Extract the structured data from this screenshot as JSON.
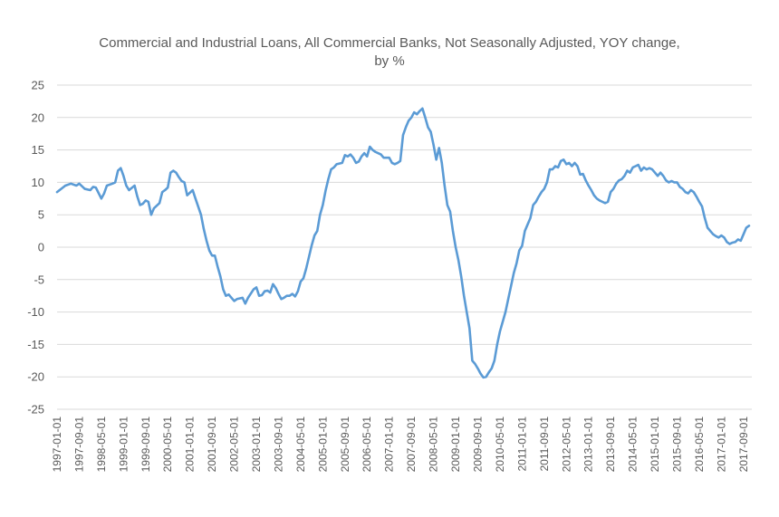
{
  "chart_data": {
    "type": "line",
    "title_lines": [
      "Commercial and Industrial Loans, All Commercial Banks, Not Seasonally Adjusted,    YOY change,",
      "by %"
    ],
    "xlabel": "",
    "ylabel": "",
    "ylim": [
      -25,
      25
    ],
    "yticks": [
      25,
      20,
      15,
      10,
      5,
      0,
      -5,
      -10,
      -15,
      -20,
      -25
    ],
    "grid": true,
    "legend": "none",
    "x_start": "1997-01-01",
    "x_end": "2017-12-01",
    "x_tick_labels": [
      "1997-01-01",
      "1997-09-01",
      "1998-05-01",
      "1999-01-01",
      "1999-09-01",
      "2000-05-01",
      "2001-01-01",
      "2001-09-01",
      "2002-05-01",
      "2003-01-01",
      "2003-09-01",
      "2004-05-01",
      "2005-01-01",
      "2005-09-01",
      "2006-05-01",
      "2007-01-01",
      "2007-09-01",
      "2008-05-01",
      "2009-01-01",
      "2009-09-01",
      "2010-05-01",
      "2011-01-01",
      "2011-09-01",
      "2012-05-01",
      "2013-01-01",
      "2013-09-01",
      "2014-05-01",
      "2015-01-01",
      "2015-09-01",
      "2016-05-01",
      "2017-01-01",
      "2017-09-01"
    ],
    "colors": {
      "line": "#5b9bd5",
      "grid": "#d9d9d9",
      "text": "#595959"
    },
    "series": [
      {
        "points": [
          [
            "1997-01-01",
            8.5
          ],
          [
            "1997-04-01",
            9.5
          ],
          [
            "1997-06-01",
            9.8
          ],
          [
            "1997-08-01",
            9.5
          ],
          [
            "1997-09-01",
            9.8
          ],
          [
            "1997-11-01",
            9.0
          ],
          [
            "1998-01-01",
            8.8
          ],
          [
            "1998-02-01",
            9.3
          ],
          [
            "1998-03-01",
            9.2
          ],
          [
            "1998-05-01",
            7.5
          ],
          [
            "1998-06-01",
            8.3
          ],
          [
            "1998-07-01",
            9.5
          ],
          [
            "1998-09-01",
            9.8
          ],
          [
            "1998-10-01",
            10.0
          ],
          [
            "1998-11-01",
            11.8
          ],
          [
            "1998-12-01",
            12.2
          ],
          [
            "1999-01-01",
            11.0
          ],
          [
            "1999-02-01",
            9.5
          ],
          [
            "1999-03-01",
            8.8
          ],
          [
            "1999-05-01",
            9.5
          ],
          [
            "1999-06-01",
            7.8
          ],
          [
            "1999-07-01",
            6.5
          ],
          [
            "1999-08-01",
            6.7
          ],
          [
            "1999-09-01",
            7.2
          ],
          [
            "1999-10-01",
            7.0
          ],
          [
            "1999-11-01",
            5.0
          ],
          [
            "1999-12-01",
            6.0
          ],
          [
            "2000-02-01",
            6.8
          ],
          [
            "2000-03-01",
            8.5
          ],
          [
            "2000-04-01",
            8.8
          ],
          [
            "2000-05-01",
            9.2
          ],
          [
            "2000-06-01",
            11.5
          ],
          [
            "2000-07-01",
            11.8
          ],
          [
            "2000-08-01",
            11.5
          ],
          [
            "2000-09-01",
            10.8
          ],
          [
            "2000-10-01",
            10.2
          ],
          [
            "2000-11-01",
            10.0
          ],
          [
            "2000-12-01",
            8.0
          ],
          [
            "2001-02-01",
            8.8
          ],
          [
            "2001-03-01",
            7.5
          ],
          [
            "2001-05-01",
            5.0
          ],
          [
            "2001-06-01",
            2.8
          ],
          [
            "2001-07-01",
            1.0
          ],
          [
            "2001-08-01",
            -0.5
          ],
          [
            "2001-09-01",
            -1.3
          ],
          [
            "2001-10-01",
            -1.3
          ],
          [
            "2001-11-01",
            -3.0
          ],
          [
            "2001-12-01",
            -4.5
          ],
          [
            "2002-01-01",
            -6.5
          ],
          [
            "2002-02-01",
            -7.5
          ],
          [
            "2002-03-01",
            -7.3
          ],
          [
            "2002-05-01",
            -8.3
          ],
          [
            "2002-06-01",
            -8.0
          ],
          [
            "2002-08-01",
            -7.8
          ],
          [
            "2002-09-01",
            -8.7
          ],
          [
            "2002-10-01",
            -7.8
          ],
          [
            "2002-12-01",
            -6.5
          ],
          [
            "2003-01-01",
            -6.2
          ],
          [
            "2003-02-01",
            -7.5
          ],
          [
            "2003-03-01",
            -7.4
          ],
          [
            "2003-04-01",
            -6.8
          ],
          [
            "2003-05-01",
            -6.7
          ],
          [
            "2003-06-01",
            -7.0
          ],
          [
            "2003-07-01",
            -5.7
          ],
          [
            "2003-08-01",
            -6.3
          ],
          [
            "2003-09-01",
            -7.2
          ],
          [
            "2003-10-01",
            -8.0
          ],
          [
            "2003-11-01",
            -7.8
          ],
          [
            "2003-12-01",
            -7.5
          ],
          [
            "2004-01-01",
            -7.5
          ],
          [
            "2004-02-01",
            -7.2
          ],
          [
            "2004-03-01",
            -7.6
          ],
          [
            "2004-04-01",
            -6.8
          ],
          [
            "2004-05-01",
            -5.3
          ],
          [
            "2004-06-01",
            -4.8
          ],
          [
            "2004-07-01",
            -3.3
          ],
          [
            "2004-08-01",
            -1.5
          ],
          [
            "2004-09-01",
            0.3
          ],
          [
            "2004-10-01",
            1.8
          ],
          [
            "2004-11-01",
            2.5
          ],
          [
            "2004-12-01",
            5.0
          ],
          [
            "2005-01-01",
            6.5
          ],
          [
            "2005-02-01",
            8.7
          ],
          [
            "2005-03-01",
            10.5
          ],
          [
            "2005-04-01",
            12.0
          ],
          [
            "2005-05-01",
            12.3
          ],
          [
            "2005-06-01",
            12.8
          ],
          [
            "2005-08-01",
            13.0
          ],
          [
            "2005-09-01",
            14.2
          ],
          [
            "2005-10-01",
            14.0
          ],
          [
            "2005-11-01",
            14.3
          ],
          [
            "2005-12-01",
            13.8
          ],
          [
            "2006-01-01",
            13.0
          ],
          [
            "2006-02-01",
            13.2
          ],
          [
            "2006-03-01",
            14.0
          ],
          [
            "2006-04-01",
            14.5
          ],
          [
            "2006-05-01",
            14.0
          ],
          [
            "2006-06-01",
            15.5
          ],
          [
            "2006-07-01",
            15.0
          ],
          [
            "2006-08-01",
            14.7
          ],
          [
            "2006-09-01",
            14.5
          ],
          [
            "2006-10-01",
            14.3
          ],
          [
            "2006-11-01",
            13.8
          ],
          [
            "2007-01-01",
            13.8
          ],
          [
            "2007-02-01",
            13.0
          ],
          [
            "2007-03-01",
            12.8
          ],
          [
            "2007-04-01",
            13.0
          ],
          [
            "2007-05-01",
            13.3
          ],
          [
            "2007-06-01",
            17.3
          ],
          [
            "2007-07-01",
            18.5
          ],
          [
            "2007-08-01",
            19.5
          ],
          [
            "2007-09-01",
            20.0
          ],
          [
            "2007-10-01",
            20.8
          ],
          [
            "2007-11-01",
            20.5
          ],
          [
            "2007-12-01",
            21.0
          ],
          [
            "2008-01-01",
            21.4
          ],
          [
            "2008-02-01",
            20.0
          ],
          [
            "2008-03-01",
            18.5
          ],
          [
            "2008-04-01",
            17.8
          ],
          [
            "2008-05-01",
            15.8
          ],
          [
            "2008-06-01",
            13.5
          ],
          [
            "2008-07-01",
            15.3
          ],
          [
            "2008-08-01",
            13.0
          ],
          [
            "2008-09-01",
            9.5
          ],
          [
            "2008-10-01",
            6.5
          ],
          [
            "2008-11-01",
            5.5
          ],
          [
            "2008-12-01",
            2.5
          ],
          [
            "2009-01-01",
            0.0
          ],
          [
            "2009-02-01",
            -2.0
          ],
          [
            "2009-03-01",
            -4.5
          ],
          [
            "2009-04-01",
            -7.5
          ],
          [
            "2009-05-01",
            -10.0
          ],
          [
            "2009-06-01",
            -12.5
          ],
          [
            "2009-07-01",
            -17.5
          ],
          [
            "2009-08-01",
            -18.0
          ],
          [
            "2009-09-01",
            -18.7
          ],
          [
            "2009-10-01",
            -19.5
          ],
          [
            "2009-11-01",
            -20.1
          ],
          [
            "2009-12-01",
            -20.0
          ],
          [
            "2010-01-01",
            -19.3
          ],
          [
            "2010-02-01",
            -18.7
          ],
          [
            "2010-03-01",
            -17.5
          ],
          [
            "2010-04-01",
            -15.0
          ],
          [
            "2010-05-01",
            -13.0
          ],
          [
            "2010-06-01",
            -11.5
          ],
          [
            "2010-07-01",
            -10.0
          ],
          [
            "2010-08-01",
            -8.0
          ],
          [
            "2010-09-01",
            -6.0
          ],
          [
            "2010-10-01",
            -4.0
          ],
          [
            "2010-11-01",
            -2.5
          ],
          [
            "2010-12-01",
            -0.5
          ],
          [
            "2011-01-01",
            0.2
          ],
          [
            "2011-02-01",
            2.5
          ],
          [
            "2011-03-01",
            3.5
          ],
          [
            "2011-04-01",
            4.5
          ],
          [
            "2011-05-01",
            6.5
          ],
          [
            "2011-06-01",
            7.0
          ],
          [
            "2011-07-01",
            7.8
          ],
          [
            "2011-08-01",
            8.5
          ],
          [
            "2011-09-01",
            9.0
          ],
          [
            "2011-10-01",
            10.0
          ],
          [
            "2011-11-01",
            12.0
          ],
          [
            "2011-12-01",
            12.0
          ],
          [
            "2012-01-01",
            12.5
          ],
          [
            "2012-02-01",
            12.3
          ],
          [
            "2012-03-01",
            13.3
          ],
          [
            "2012-04-01",
            13.5
          ],
          [
            "2012-05-01",
            12.8
          ],
          [
            "2012-06-01",
            13.0
          ],
          [
            "2012-07-01",
            12.5
          ],
          [
            "2012-08-01",
            13.0
          ],
          [
            "2012-09-01",
            12.5
          ],
          [
            "2012-10-01",
            11.2
          ],
          [
            "2012-11-01",
            11.3
          ],
          [
            "2012-12-01",
            10.3
          ],
          [
            "2013-01-01",
            9.5
          ],
          [
            "2013-02-01",
            8.8
          ],
          [
            "2013-03-01",
            8.0
          ],
          [
            "2013-04-01",
            7.5
          ],
          [
            "2013-05-01",
            7.2
          ],
          [
            "2013-06-01",
            7.0
          ],
          [
            "2013-07-01",
            6.8
          ],
          [
            "2013-08-01",
            7.0
          ],
          [
            "2013-09-01",
            8.5
          ],
          [
            "2013-10-01",
            9.0
          ],
          [
            "2013-11-01",
            9.8
          ],
          [
            "2013-12-01",
            10.3
          ],
          [
            "2014-01-01",
            10.5
          ],
          [
            "2014-02-01",
            11.0
          ],
          [
            "2014-03-01",
            11.8
          ],
          [
            "2014-04-01",
            11.5
          ],
          [
            "2014-05-01",
            12.3
          ],
          [
            "2014-06-01",
            12.5
          ],
          [
            "2014-07-01",
            12.7
          ],
          [
            "2014-08-01",
            11.8
          ],
          [
            "2014-09-01",
            12.3
          ],
          [
            "2014-10-01",
            12.0
          ],
          [
            "2014-11-01",
            12.2
          ],
          [
            "2014-12-01",
            12.0
          ],
          [
            "2015-01-01",
            11.5
          ],
          [
            "2015-02-01",
            11.0
          ],
          [
            "2015-03-01",
            11.5
          ],
          [
            "2015-04-01",
            11.0
          ],
          [
            "2015-05-01",
            10.3
          ],
          [
            "2015-06-01",
            10.0
          ],
          [
            "2015-07-01",
            10.2
          ],
          [
            "2015-08-01",
            10.0
          ],
          [
            "2015-09-01",
            10.0
          ],
          [
            "2015-10-01",
            9.3
          ],
          [
            "2015-11-01",
            9.0
          ],
          [
            "2015-12-01",
            8.5
          ],
          [
            "2016-01-01",
            8.3
          ],
          [
            "2016-02-01",
            8.8
          ],
          [
            "2016-03-01",
            8.5
          ],
          [
            "2016-04-01",
            7.8
          ],
          [
            "2016-05-01",
            7.0
          ],
          [
            "2016-06-01",
            6.3
          ],
          [
            "2016-07-01",
            4.5
          ],
          [
            "2016-08-01",
            3.0
          ],
          [
            "2016-09-01",
            2.5
          ],
          [
            "2016-10-01",
            2.0
          ],
          [
            "2016-11-01",
            1.7
          ],
          [
            "2016-12-01",
            1.5
          ],
          [
            "2017-01-01",
            1.8
          ],
          [
            "2017-02-01",
            1.5
          ],
          [
            "2017-03-01",
            0.8
          ],
          [
            "2017-04-01",
            0.5
          ],
          [
            "2017-05-01",
            0.7
          ],
          [
            "2017-06-01",
            0.8
          ],
          [
            "2017-07-01",
            1.2
          ],
          [
            "2017-08-01",
            1.0
          ],
          [
            "2017-09-01",
            2.0
          ],
          [
            "2017-10-01",
            3.0
          ],
          [
            "2017-11-01",
            3.3
          ]
        ]
      }
    ]
  }
}
